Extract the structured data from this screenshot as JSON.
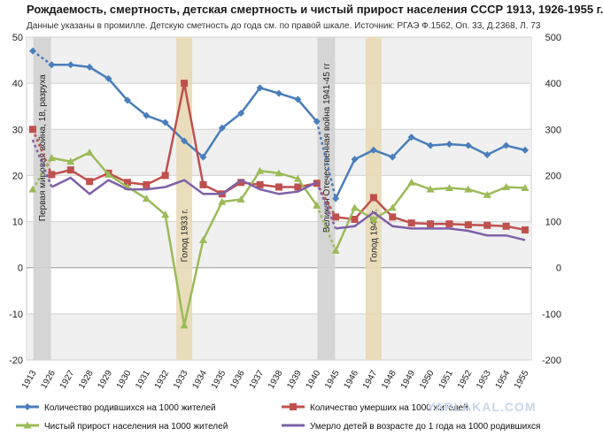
{
  "title": "Рождаемость, смертность, детская смертность и чистый прирост населения СССР 1913, 1926-1955 г.",
  "subtitle": "Данные указаны в промилле. Детскую сметность до года см. по правой шкале. Источник: РГАЭ Ф.1562, Оп. 33, Д.2368, Л. 73",
  "watermark": "YAPLAKAL.COM",
  "chart_data": {
    "type": "line",
    "x": [
      "1913",
      "1926",
      "1927",
      "1928",
      "1929",
      "1930",
      "1931",
      "1932",
      "1933",
      "1934",
      "1935",
      "1936",
      "1937",
      "1938",
      "1939",
      "1940",
      "1945",
      "1946",
      "1947",
      "1948",
      "1949",
      "1950",
      "1951",
      "1952",
      "1953",
      "1954",
      "1955"
    ],
    "ylim": [
      -20,
      50
    ],
    "yticks": [
      -20,
      -10,
      0,
      10,
      20,
      30,
      40,
      50
    ],
    "y2lim": [
      -200,
      500
    ],
    "y2ticks": [
      -200,
      -100,
      0,
      100,
      200,
      300,
      400,
      500
    ],
    "grid": true,
    "legend_position": "bottom",
    "bands": [
      {
        "label": "Первая мировая война, 18, разруха",
        "from": "1913",
        "to": "1926"
      },
      {
        "label": "Голод 1933 г.",
        "at": "1933"
      },
      {
        "label": "Великая Отечественная война 1941-45 гг",
        "from": "1940",
        "to": "1945"
      },
      {
        "label": "Голод 1947 г.",
        "at": "1947"
      }
    ],
    "series": [
      {
        "name": "Количество родившихся на 1000 жителей",
        "color": "#4a7ebb",
        "marker": "diamond",
        "axis": "left",
        "values": [
          47,
          44,
          44,
          43.5,
          41,
          36.3,
          33,
          31.5,
          27.5,
          24,
          30.3,
          33.5,
          39,
          37.8,
          36.5,
          31.7,
          15,
          23.5,
          25.5,
          24,
          28.3,
          26.5,
          26.8,
          26.5,
          24.5,
          26.5,
          25.5
        ]
      },
      {
        "name": "Количество умерших на 1000 жителей",
        "color": "#c0504d",
        "marker": "square",
        "axis": "left",
        "values": [
          30,
          20.2,
          21.2,
          18.7,
          20.5,
          18.5,
          18,
          20,
          40,
          18,
          16,
          18.5,
          18,
          17.5,
          17.5,
          18.3,
          11,
          10.5,
          15.2,
          11,
          9.7,
          9.5,
          9.5,
          9.3,
          9.2,
          9,
          8.2
        ]
      },
      {
        "name": "Чистый прирост населения на 1000 жителей",
        "color": "#9bbb59",
        "marker": "triangle",
        "axis": "left",
        "values": [
          17,
          23.8,
          23,
          25,
          20.2,
          17.5,
          15,
          11.5,
          -12.5,
          6,
          14.3,
          14.8,
          21,
          20.5,
          19.3,
          13.5,
          3.7,
          13,
          10.5,
          13,
          18.5,
          17,
          17.3,
          17,
          15.8,
          17.5,
          17.3
        ]
      },
      {
        "name": "Умерло детей в возрасте до 1 года на 1000 родившихся",
        "color": "#7f60a8",
        "marker": "none",
        "axis": "right",
        "values": [
          277,
          175,
          195,
          160,
          190,
          170,
          170,
          175,
          190,
          160,
          160,
          190,
          170,
          160,
          165,
          185,
          85,
          90,
          120,
          90,
          85,
          85,
          85,
          80,
          70,
          70,
          60
        ]
      }
    ]
  }
}
